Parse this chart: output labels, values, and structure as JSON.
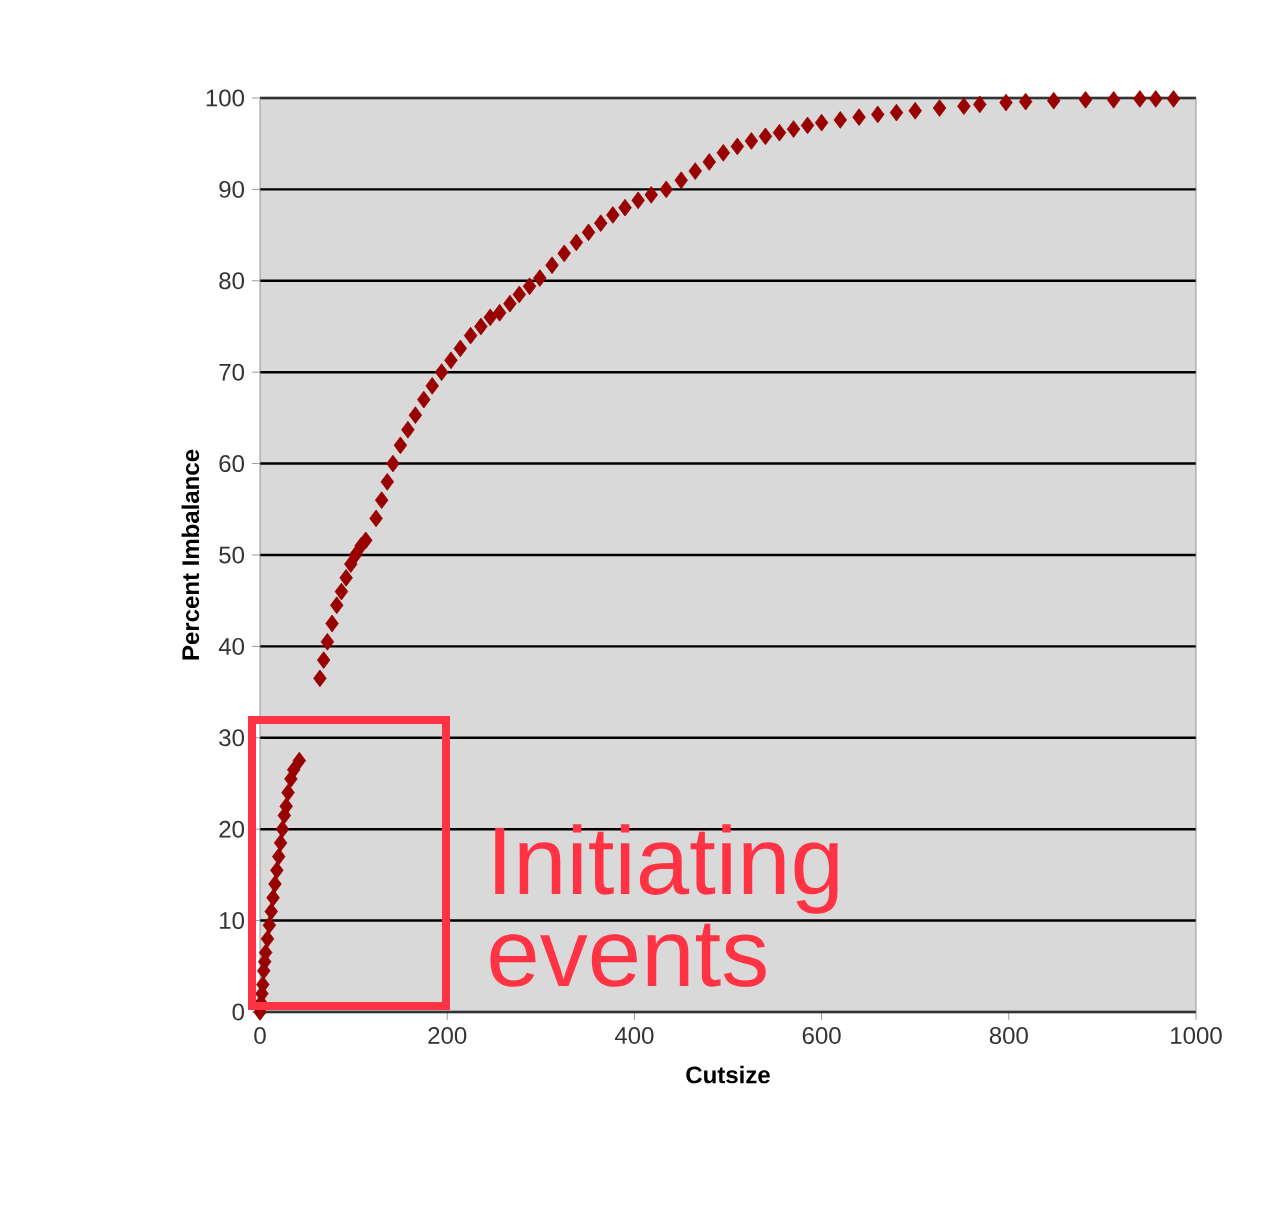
{
  "chart_data": {
    "type": "scatter",
    "xlabel": "Cutsize",
    "ylabel": "Percent Imbalance",
    "x": [
      0,
      1,
      2,
      3,
      4,
      5,
      6,
      8,
      10,
      12,
      14,
      16,
      18,
      20,
      22,
      24,
      26,
      28,
      30,
      33,
      36,
      42,
      64,
      68,
      72,
      77,
      82,
      87,
      92,
      97,
      102,
      108,
      113,
      124,
      130,
      136,
      142,
      150,
      158,
      166,
      175,
      184,
      194,
      204,
      214,
      225,
      236,
      246,
      256,
      267,
      277,
      288,
      299,
      312,
      325,
      338,
      351,
      364,
      377,
      390,
      404,
      418,
      434,
      450,
      465,
      480,
      495,
      510,
      525,
      540,
      555,
      570,
      585,
      600,
      620,
      640,
      660,
      680,
      700,
      726,
      752,
      769,
      797,
      818,
      848,
      882,
      912,
      940,
      957,
      976
    ],
    "values": [
      0,
      1,
      2,
      3,
      4.5,
      5.5,
      6.5,
      8,
      9.5,
      11,
      12.5,
      14,
      15.5,
      17,
      18.5,
      20,
      21.5,
      22.5,
      24,
      25.5,
      26.5,
      27.5,
      36.5,
      38.5,
      40.5,
      42.5,
      44.5,
      46,
      47.5,
      49,
      50,
      51,
      51.6,
      54,
      56,
      58,
      60,
      62,
      63.7,
      65.3,
      67,
      68.5,
      70,
      71.3,
      72.6,
      74,
      75,
      76,
      76.5,
      77.5,
      78.5,
      79.4,
      80.3,
      81.7,
      83,
      84.2,
      85.3,
      86.3,
      87.2,
      88,
      88.8,
      89.4,
      90,
      91,
      92,
      93,
      94,
      94.7,
      95.3,
      95.8,
      96.2,
      96.6,
      97,
      97.3,
      97.6,
      97.9,
      98.2,
      98.4,
      98.6,
      98.9,
      99.1,
      99.3,
      99.5,
      99.6,
      99.7,
      99.8,
      99.8,
      99.9,
      99.9,
      99.9
    ],
    "color": "#990000",
    "marker": "diamond",
    "xlim": [
      0,
      1000
    ],
    "ylim": [
      0,
      100
    ],
    "xticks": [
      0,
      200,
      400,
      600,
      800,
      1000
    ],
    "yticks": [
      0,
      10,
      20,
      30,
      40,
      50,
      60,
      70,
      80,
      90,
      100
    ],
    "grid": "y",
    "annotations": [
      "Initiating events"
    ]
  }
}
